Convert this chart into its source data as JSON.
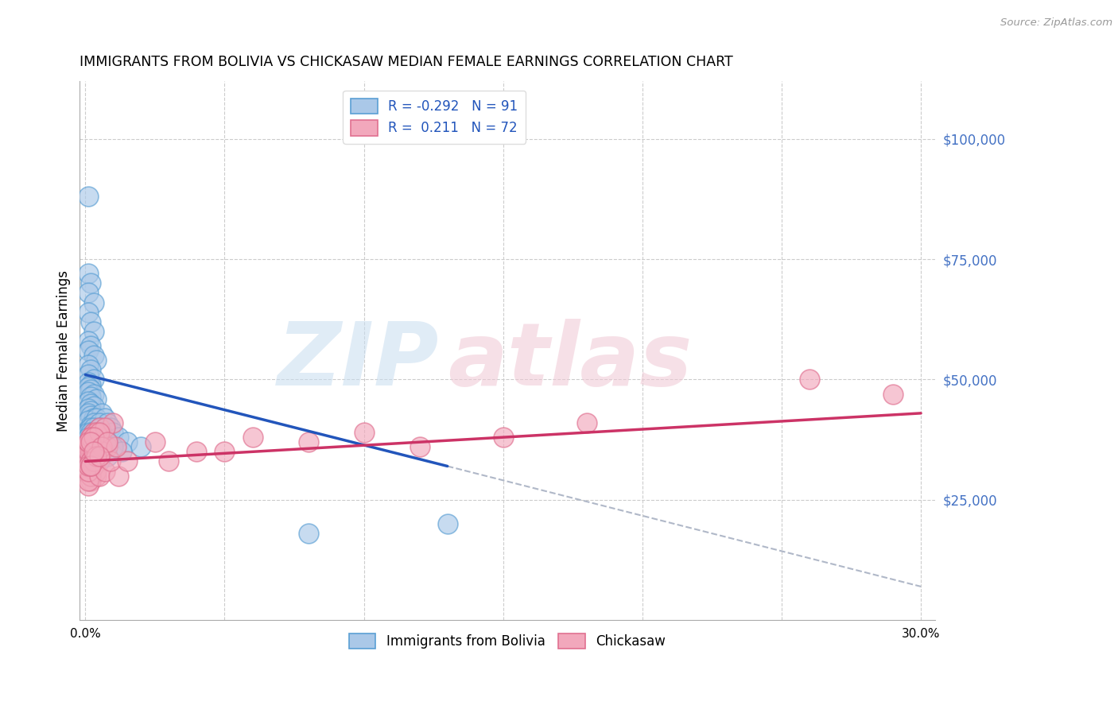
{
  "title": "IMMIGRANTS FROM BOLIVIA VS CHICKASAW MEDIAN FEMALE EARNINGS CORRELATION CHART",
  "source": "Source: ZipAtlas.com",
  "ylabel": "Median Female Earnings",
  "right_yticks": [
    "$100,000",
    "$75,000",
    "$50,000",
    "$25,000"
  ],
  "right_ytick_vals": [
    100000,
    75000,
    50000,
    25000
  ],
  "xlim": [
    -0.002,
    0.305
  ],
  "ylim": [
    0,
    112000
  ],
  "legend1_label": "R = -0.292   N = 91",
  "legend2_label": "R =  0.211   N = 72",
  "series1_name": "Immigrants from Bolivia",
  "series2_name": "Chickasaw",
  "series1_color": "#aac8e8",
  "series2_color": "#f2a8bc",
  "series1_edge": "#5a9fd4",
  "series2_edge": "#e07090",
  "trend1_color": "#2255bb",
  "trend2_color": "#cc3366",
  "trend_dash_color": "#b0b8c8",
  "background": "#ffffff",
  "grid_color": "#cccccc",
  "bolivia_x": [
    0.001,
    0.001,
    0.002,
    0.001,
    0.003,
    0.001,
    0.002,
    0.003,
    0.001,
    0.002,
    0.001,
    0.003,
    0.004,
    0.001,
    0.002,
    0.001,
    0.003,
    0.001,
    0.002,
    0.001,
    0.002,
    0.001,
    0.003,
    0.002,
    0.004,
    0.001,
    0.002,
    0.003,
    0.001,
    0.002,
    0.001,
    0.002,
    0.003,
    0.001,
    0.004,
    0.002,
    0.003,
    0.001,
    0.002,
    0.001,
    0.005,
    0.003,
    0.002,
    0.001,
    0.004,
    0.002,
    0.003,
    0.001,
    0.002,
    0.001,
    0.006,
    0.004,
    0.003,
    0.002,
    0.001,
    0.007,
    0.005,
    0.003,
    0.002,
    0.001,
    0.008,
    0.005,
    0.003,
    0.002,
    0.001,
    0.009,
    0.006,
    0.004,
    0.002,
    0.001,
    0.01,
    0.007,
    0.005,
    0.003,
    0.001,
    0.012,
    0.008,
    0.005,
    0.003,
    0.001,
    0.015,
    0.01,
    0.006,
    0.003,
    0.001,
    0.02,
    0.013,
    0.008,
    0.005,
    0.13,
    0.08
  ],
  "bolivia_y": [
    88000,
    72000,
    70000,
    68000,
    66000,
    64000,
    62000,
    60000,
    58000,
    57000,
    56000,
    55000,
    54000,
    53000,
    52000,
    51000,
    50000,
    49500,
    49000,
    48500,
    48000,
    47500,
    47000,
    46500,
    46000,
    45500,
    45000,
    44500,
    44000,
    43500,
    43000,
    42500,
    42000,
    41500,
    41000,
    40500,
    40000,
    39500,
    39000,
    38500,
    38000,
    37500,
    37000,
    36500,
    36000,
    35500,
    35000,
    34500,
    34000,
    33500,
    43000,
    42000,
    41000,
    40000,
    39000,
    42000,
    41000,
    40000,
    39000,
    38000,
    41000,
    40000,
    39000,
    38000,
    37000,
    40000,
    39000,
    38000,
    37000,
    36000,
    39000,
    38000,
    37000,
    36000,
    35000,
    38000,
    37000,
    36000,
    35000,
    34000,
    37000,
    36000,
    35000,
    34000,
    33000,
    36000,
    35000,
    34000,
    33000,
    20000,
    18000
  ],
  "chickasaw_x": [
    0.001,
    0.002,
    0.001,
    0.003,
    0.002,
    0.001,
    0.004,
    0.002,
    0.001,
    0.003,
    0.001,
    0.002,
    0.003,
    0.001,
    0.002,
    0.004,
    0.002,
    0.001,
    0.005,
    0.003,
    0.002,
    0.001,
    0.004,
    0.002,
    0.003,
    0.001,
    0.005,
    0.003,
    0.002,
    0.001,
    0.006,
    0.004,
    0.003,
    0.002,
    0.001,
    0.007,
    0.005,
    0.004,
    0.002,
    0.001,
    0.008,
    0.006,
    0.004,
    0.003,
    0.002,
    0.01,
    0.007,
    0.005,
    0.003,
    0.002,
    0.012,
    0.009,
    0.006,
    0.004,
    0.002,
    0.015,
    0.011,
    0.008,
    0.005,
    0.003,
    0.04,
    0.03,
    0.025,
    0.06,
    0.05,
    0.08,
    0.1,
    0.12,
    0.15,
    0.18,
    0.26,
    0.29
  ],
  "chickasaw_y": [
    36000,
    35000,
    34000,
    33000,
    32000,
    31000,
    30000,
    29000,
    28000,
    37000,
    36000,
    35000,
    34000,
    33000,
    32000,
    31000,
    30000,
    29000,
    38000,
    37000,
    36000,
    35000,
    34000,
    33000,
    32000,
    31000,
    30000,
    39000,
    38000,
    37000,
    36000,
    35000,
    34000,
    33000,
    32000,
    31000,
    40000,
    39000,
    38000,
    37000,
    36000,
    35000,
    34000,
    33000,
    32000,
    41000,
    40000,
    39000,
    38000,
    37000,
    30000,
    33000,
    36000,
    34000,
    32000,
    33000,
    36000,
    37000,
    34000,
    35000,
    35000,
    33000,
    37000,
    38000,
    35000,
    37000,
    39000,
    36000,
    38000,
    41000,
    50000,
    47000
  ],
  "trend1_x0": 0.0,
  "trend1_y0": 51000,
  "trend1_x1": 0.13,
  "trend1_y1": 32000,
  "trend1_dash_x0": 0.13,
  "trend1_dash_y0": 32000,
  "trend1_dash_x1": 0.3,
  "trend1_dash_y1": 7000,
  "trend2_x0": 0.0,
  "trend2_y0": 33000,
  "trend2_x1": 0.3,
  "trend2_y1": 43000
}
